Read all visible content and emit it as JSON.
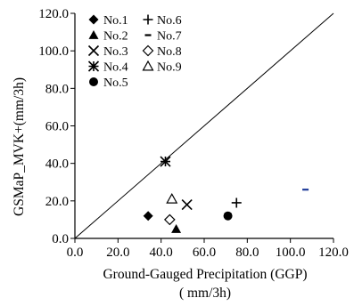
{
  "chart_data": {
    "type": "scatter",
    "xlabel": "Ground-Gauged Precipitation (GGP)",
    "xlabel_unit": "( mm/3h)",
    "ylabel": "GSMaP_MVK+(mm/3h)",
    "xlim": [
      0,
      120
    ],
    "ylim": [
      0,
      120
    ],
    "x_ticks": [
      "0.0",
      "20.0",
      "40.0",
      "60.0",
      "80.0",
      "100.0",
      "120.0"
    ],
    "y_ticks": [
      "0.0",
      "20.0",
      "40.0",
      "60.0",
      "80.0",
      "100.0",
      "120.0"
    ],
    "grid": false,
    "legend_position": "top-left",
    "reference_line": {
      "from": [
        0,
        0
      ],
      "to": [
        120,
        120
      ]
    },
    "series": [
      {
        "name": "No.1",
        "marker": "diamond-filled",
        "color": "#000000",
        "points": [
          [
            34,
            12
          ]
        ]
      },
      {
        "name": "No.2",
        "marker": "triangle-filled",
        "color": "#000000",
        "points": [
          [
            47,
            5
          ]
        ]
      },
      {
        "name": "No.3",
        "marker": "x",
        "color": "#000000",
        "points": [
          [
            52,
            18
          ]
        ]
      },
      {
        "name": "No.4",
        "marker": "asterisk",
        "color": "#000000",
        "points": [
          [
            42,
            41
          ]
        ]
      },
      {
        "name": "No.5",
        "marker": "circle-filled",
        "color": "#000000",
        "points": [
          [
            71,
            12
          ]
        ]
      },
      {
        "name": "No.6",
        "marker": "plus",
        "color": "#000000",
        "points": [
          [
            75,
            19
          ]
        ]
      },
      {
        "name": "No.7",
        "marker": "dash",
        "color": "#000000",
        "points": [
          [
            107,
            26
          ]
        ]
      },
      {
        "name": "No.8",
        "marker": "diamond-open",
        "color": "#000000",
        "points": [
          [
            44,
            10
          ]
        ]
      },
      {
        "name": "No.9",
        "marker": "triangle-open",
        "color": "#000000",
        "points": [
          [
            45,
            21
          ]
        ]
      }
    ],
    "highlight_color": "#1f3b9a"
  }
}
